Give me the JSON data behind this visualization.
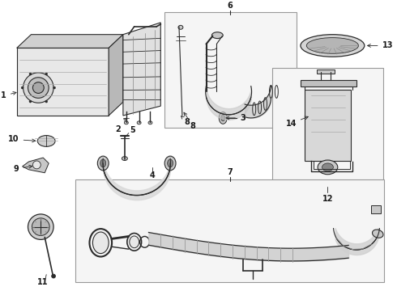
{
  "bg_color": "#ffffff",
  "line_color": "#2a2a2a",
  "text_color": "#1a1a1a",
  "box_face": "#f5f5f5",
  "box_edge": "#999999",
  "component_gray": "#c8c8c8",
  "component_dark": "#888888",
  "label_fs": 7,
  "layout": {
    "fig_w": 4.9,
    "fig_h": 3.6,
    "dpi": 100
  }
}
